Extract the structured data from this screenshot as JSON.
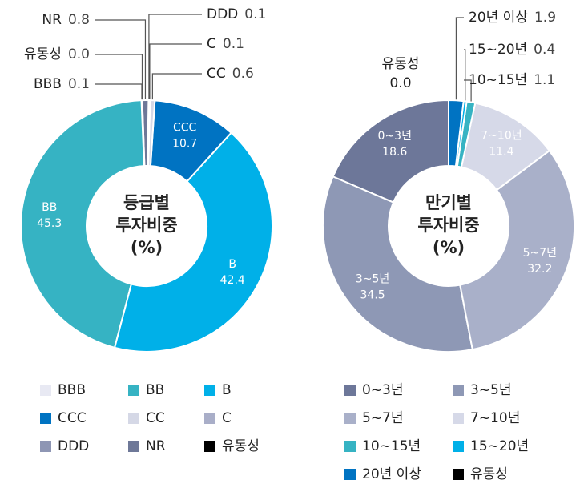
{
  "chart_data": [
    {
      "type": "donut",
      "center_label": [
        "등급별",
        "투자비중",
        "(%)"
      ],
      "categories": [
        "BBB",
        "BB",
        "B",
        "CCC",
        "CC",
        "C",
        "DDD",
        "NR",
        "유동성"
      ],
      "values": [
        0.1,
        45.3,
        42.4,
        10.7,
        0.6,
        0.1,
        0.1,
        0.8,
        0.0
      ],
      "value_labels": [
        "0.1",
        "45.3",
        "42.4",
        "10.7",
        "0.6",
        "0.1",
        "0.1",
        "0.8",
        "0.0"
      ],
      "colors": [
        "#e8e9f3",
        "#36b3c3",
        "#00b0e8",
        "#0073c2",
        "#d5d8e6",
        "#a9aec8",
        "#8e96b4",
        "#6e7898",
        "#000000"
      ]
    },
    {
      "type": "donut",
      "center_label": [
        "만기별",
        "투자비중",
        "(%)"
      ],
      "categories": [
        "0~3년",
        "3~5년",
        "5~7년",
        "7~10년",
        "10~15년",
        "15~20년",
        "20년 이상",
        "유동성"
      ],
      "values": [
        18.6,
        34.5,
        32.2,
        11.4,
        1.1,
        0.4,
        1.9,
        0.0
      ],
      "value_labels": [
        "18.6",
        "34.5",
        "32.2",
        "11.4",
        "1.1",
        "0.4",
        "1.9",
        "0.0"
      ],
      "colors": [
        "#6d7799",
        "#8e98b5",
        "#a9b0c9",
        "#d6d9e8",
        "#36b3c3",
        "#00b0e8",
        "#0073c2",
        "#000000"
      ]
    }
  ]
}
